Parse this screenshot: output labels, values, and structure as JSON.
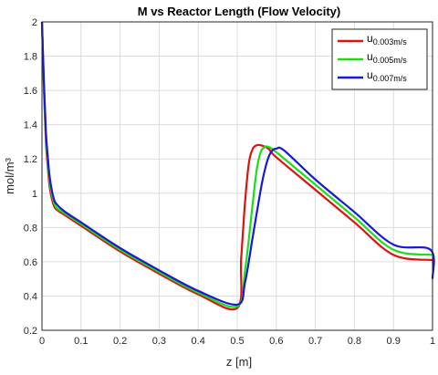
{
  "chart_data": {
    "type": "line",
    "title": "M vs Reactor Length (Flow Velocity)",
    "xlabel": "z [m]",
    "ylabel": "mol/m³",
    "xlim": [
      0,
      1
    ],
    "ylim": [
      0.2,
      2
    ],
    "xticks": [
      0,
      0.1,
      0.2,
      0.3,
      0.4,
      0.5,
      0.6,
      0.7,
      0.8,
      0.9,
      1
    ],
    "yticks": [
      0.2,
      0.4,
      0.6,
      0.8,
      1,
      1.2,
      1.4,
      1.6,
      1.8,
      2
    ],
    "grid": true,
    "legend_position": "top-right",
    "series": [
      {
        "name": "u",
        "subscript": "0.003m/s",
        "color": "#e01010",
        "x": [
          0,
          0.005,
          0.01,
          0.015,
          0.02,
          0.03,
          0.04,
          0.06,
          0.1,
          0.2,
          0.3,
          0.4,
          0.5,
          0.51,
          0.52,
          0.53,
          0.54,
          0.55,
          0.56,
          0.58,
          0.6,
          0.7,
          0.8,
          0.9,
          1.0
        ],
        "y": [
          2.0,
          1.6,
          1.3,
          1.15,
          1.03,
          0.93,
          0.9,
          0.87,
          0.81,
          0.66,
          0.53,
          0.41,
          0.33,
          0.62,
          0.95,
          1.18,
          1.26,
          1.28,
          1.28,
          1.26,
          1.21,
          1.02,
          0.83,
          0.64,
          0.61
        ]
      },
      {
        "name": "u",
        "subscript": "0.005m/s",
        "color": "#18e018",
        "x": [
          0,
          0.005,
          0.01,
          0.015,
          0.02,
          0.03,
          0.04,
          0.06,
          0.1,
          0.2,
          0.3,
          0.4,
          0.5,
          0.52,
          0.54,
          0.55,
          0.56,
          0.57,
          0.58,
          0.6,
          0.7,
          0.8,
          0.9,
          1.0
        ],
        "y": [
          2.0,
          1.62,
          1.33,
          1.18,
          1.06,
          0.95,
          0.91,
          0.88,
          0.82,
          0.67,
          0.54,
          0.42,
          0.34,
          0.55,
          0.95,
          1.14,
          1.24,
          1.27,
          1.27,
          1.24,
          1.05,
          0.86,
          0.67,
          0.64
        ]
      },
      {
        "name": "u",
        "subscript": "0.007m/s",
        "color": "#1818d8",
        "x": [
          0,
          0.005,
          0.01,
          0.015,
          0.02,
          0.03,
          0.04,
          0.06,
          0.1,
          0.2,
          0.3,
          0.4,
          0.5,
          0.52,
          0.54,
          0.56,
          0.57,
          0.58,
          0.59,
          0.6,
          0.62,
          0.7,
          0.8,
          0.9,
          0.995,
          1.0
        ],
        "y": [
          2.0,
          1.65,
          1.36,
          1.21,
          1.09,
          0.97,
          0.93,
          0.89,
          0.83,
          0.68,
          0.55,
          0.43,
          0.35,
          0.48,
          0.75,
          1.02,
          1.13,
          1.21,
          1.25,
          1.26,
          1.25,
          1.08,
          0.89,
          0.7,
          0.67,
          0.5
        ]
      }
    ]
  }
}
